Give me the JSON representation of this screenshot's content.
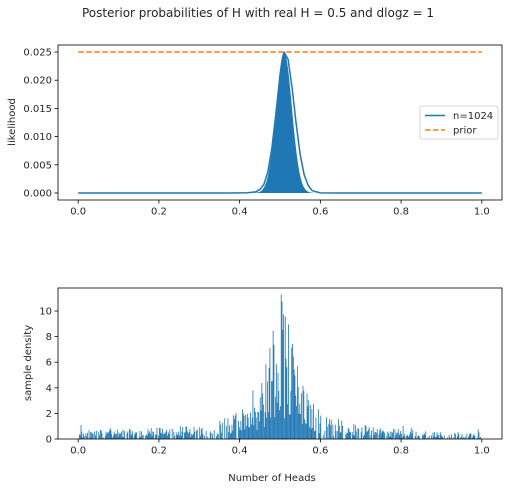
{
  "figure": {
    "suptitle": "Posterior probabilities of H with real H = 0.5 and dlogz = 1"
  },
  "chart_data": [
    {
      "type": "line",
      "title": "",
      "xlabel": "",
      "ylabel": "likelihood",
      "xlim": [
        -0.05,
        1.05
      ],
      "ylim": [
        -0.00125,
        0.02625
      ],
      "xticks": [
        0.0,
        0.2,
        0.4,
        0.6,
        0.8,
        1.0
      ],
      "xtick_labels": [
        "0.0",
        "0.2",
        "0.4",
        "0.6",
        "0.8",
        "1.0"
      ],
      "yticks": [
        0.0,
        0.005,
        0.01,
        0.015,
        0.02,
        0.025
      ],
      "ytick_labels": [
        "0.000",
        "0.005",
        "0.010",
        "0.015",
        "0.020",
        "0.025"
      ],
      "grid": false,
      "legend_position": "center-right",
      "series": [
        {
          "name": "n=1024",
          "style": "solid",
          "color": "#1f77b4",
          "peak_x": 0.51,
          "peak_y": 0.025,
          "x": [
            0.0,
            0.38,
            0.42,
            0.44,
            0.45,
            0.46,
            0.47,
            0.48,
            0.49,
            0.5,
            0.51,
            0.52,
            0.53,
            0.54,
            0.55,
            0.56,
            0.57,
            0.58,
            0.6,
            0.64,
            1.0
          ],
          "y": [
            0.0,
            0.0,
            3e-05,
            0.0002,
            0.0006,
            0.0015,
            0.0038,
            0.008,
            0.0142,
            0.0208,
            0.025,
            0.0237,
            0.0186,
            0.0123,
            0.0068,
            0.0032,
            0.0013,
            0.0004,
            2e-05,
            0.0,
            0.0
          ]
        },
        {
          "name": "prior",
          "style": "dashed",
          "color": "#ff7f0e",
          "x": [
            0.0,
            1.0
          ],
          "y": [
            0.025,
            0.025
          ]
        }
      ]
    },
    {
      "type": "bar",
      "title": "",
      "xlabel": "Number of Heads",
      "ylabel": "sample density",
      "xlim": [
        -0.05,
        1.05
      ],
      "ylim": [
        0,
        11.8
      ],
      "xticks": [
        0.0,
        0.2,
        0.4,
        0.6,
        0.8,
        1.0
      ],
      "xtick_labels": [
        "0.0",
        "0.2",
        "0.4",
        "0.6",
        "0.8",
        "1.0"
      ],
      "yticks": [
        0,
        2,
        4,
        6,
        8,
        10
      ],
      "ytick_labels": [
        "0",
        "2",
        "4",
        "6",
        "8",
        "10"
      ],
      "grid": false,
      "color": "#1f77b4",
      "bins": 500,
      "bin_range": [
        0.0,
        1.0
      ],
      "max_density": 11.3,
      "max_bin_center": 0.503,
      "density_profile": {
        "x": [
          0.0,
          0.1,
          0.2,
          0.3,
          0.35,
          0.4,
          0.44,
          0.46,
          0.48,
          0.5,
          0.52,
          0.54,
          0.56,
          0.6,
          0.65,
          0.7,
          0.8,
          0.9,
          1.0
        ],
        "y": [
          0.4,
          0.45,
          0.5,
          0.6,
          0.8,
          1.3,
          2.2,
          3.0,
          5.0,
          7.3,
          5.6,
          3.4,
          2.3,
          1.2,
          0.85,
          0.6,
          0.45,
          0.35,
          0.3
        ]
      }
    }
  ]
}
